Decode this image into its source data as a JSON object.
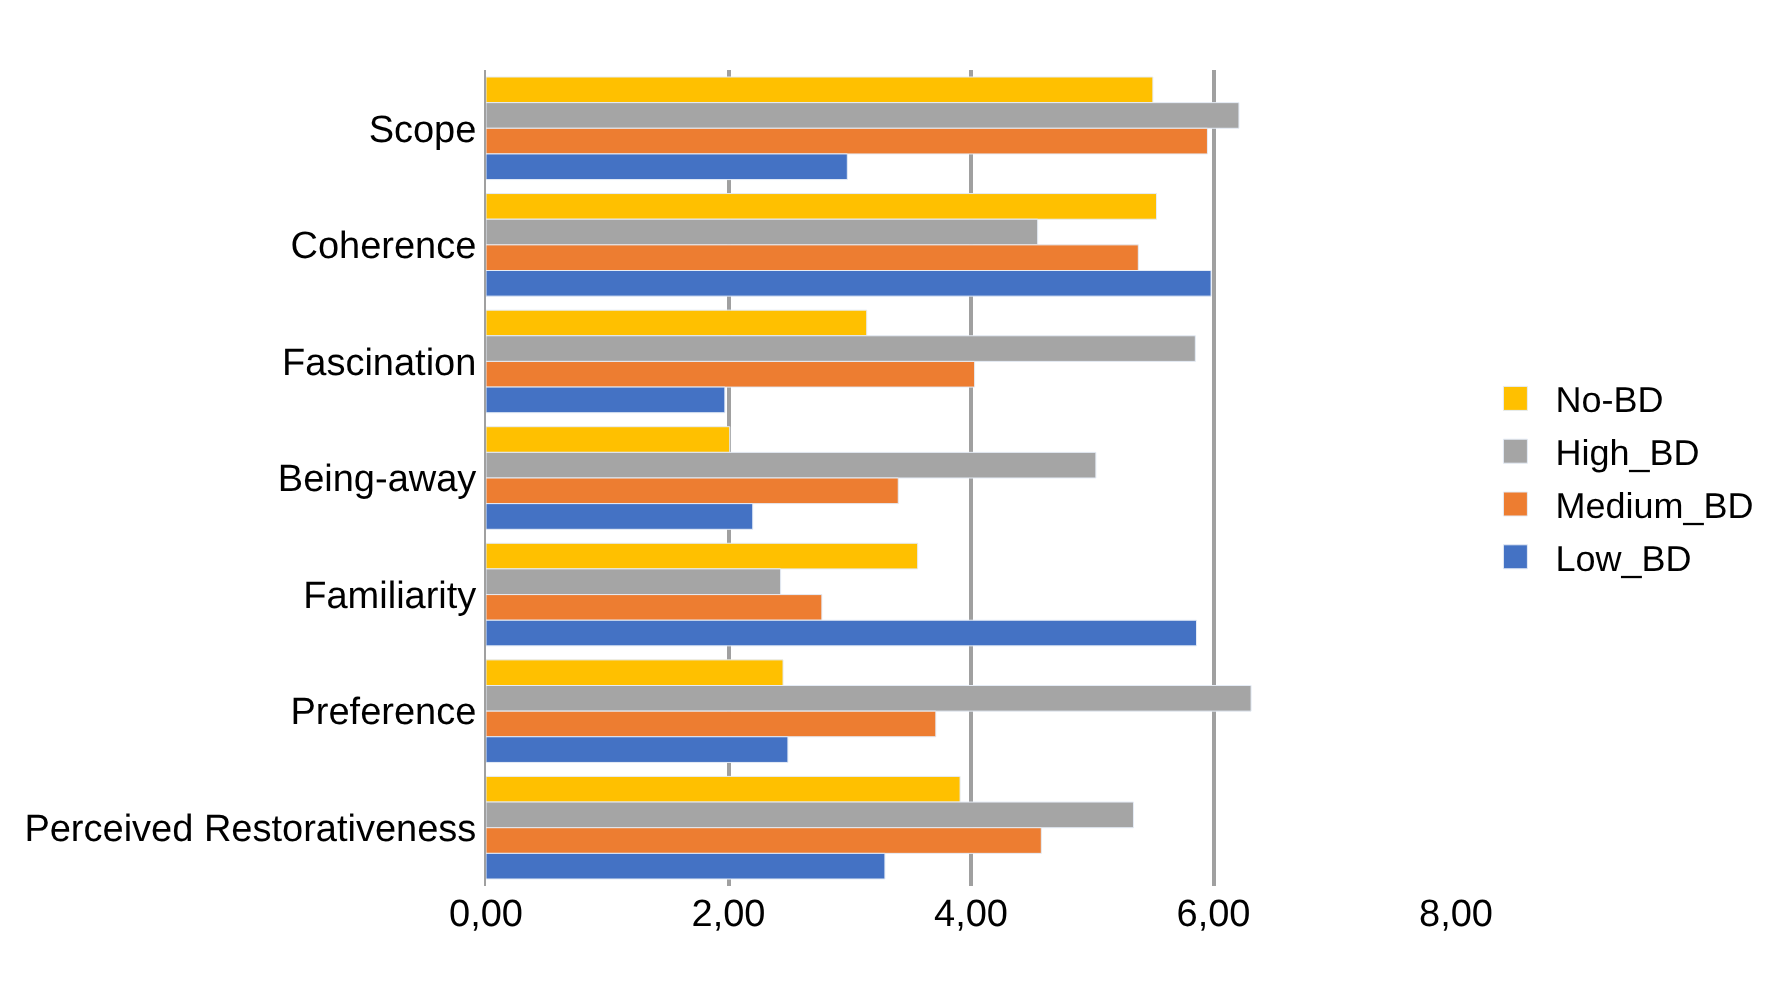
{
  "chart_data": {
    "type": "bar",
    "orientation": "horizontal",
    "categories": [
      "Scope",
      "Coherence",
      "Fascination",
      "Being-away",
      "Familiarity",
      "Preference",
      "Perceived Restorativeness"
    ],
    "series": [
      {
        "name": "No-BD",
        "color": "#ffc000",
        "values": [
          5.5,
          5.53,
          3.14,
          2.01,
          3.56,
          2.45,
          3.91
        ]
      },
      {
        "name": "High_BD",
        "color": "#a5a5a5",
        "values": [
          6.21,
          4.55,
          5.85,
          5.03,
          2.43,
          6.31,
          5.34
        ]
      },
      {
        "name": "Medium_BD",
        "color": "#ed7d31",
        "values": [
          5.95,
          5.38,
          4.03,
          3.4,
          2.77,
          3.71,
          4.58
        ]
      },
      {
        "name": "Low_BD",
        "color": "#4472c4",
        "values": [
          2.98,
          5.98,
          1.97,
          2.2,
          5.86,
          2.49,
          3.29
        ]
      }
    ],
    "xlim": [
      0,
      8
    ],
    "xticks": [
      {
        "value": 0,
        "label": "0,00"
      },
      {
        "value": 2,
        "label": "2,00"
      },
      {
        "value": 4,
        "label": "4,00"
      },
      {
        "value": 6,
        "label": "6,00"
      },
      {
        "value": 8,
        "label": "8,00"
      }
    ],
    "grid": "x",
    "legend": "right"
  }
}
